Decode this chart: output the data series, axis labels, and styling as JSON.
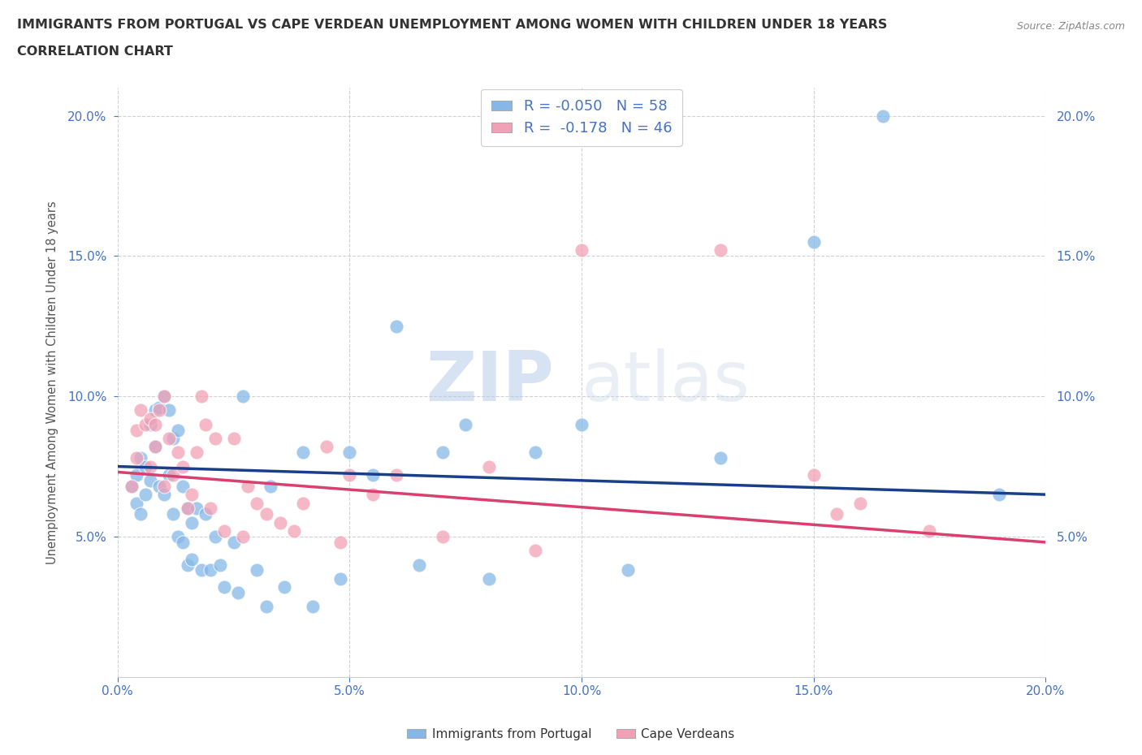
{
  "title_line1": "IMMIGRANTS FROM PORTUGAL VS CAPE VERDEAN UNEMPLOYMENT AMONG WOMEN WITH CHILDREN UNDER 18 YEARS",
  "title_line2": "CORRELATION CHART",
  "source_text": "Source: ZipAtlas.com",
  "ylabel": "Unemployment Among Women with Children Under 18 years",
  "xlim": [
    0.0,
    0.2
  ],
  "ylim": [
    0.0,
    0.21
  ],
  "xticks": [
    0.0,
    0.05,
    0.1,
    0.15,
    0.2
  ],
  "yticks": [
    0.05,
    0.1,
    0.15,
    0.2
  ],
  "watermark_zip": "ZIP",
  "watermark_atlas": "atlas",
  "blue_R": -0.05,
  "blue_N": 58,
  "pink_R": -0.178,
  "pink_N": 46,
  "blue_color": "#85B8E8",
  "pink_color": "#F2A0B5",
  "blue_line_color": "#1A3F8A",
  "pink_line_color": "#D94070",
  "legend_label_blue": "Immigrants from Portugal",
  "legend_label_pink": "Cape Verdeans",
  "blue_x": [
    0.003,
    0.004,
    0.004,
    0.005,
    0.005,
    0.006,
    0.006,
    0.007,
    0.007,
    0.008,
    0.008,
    0.009,
    0.009,
    0.01,
    0.01,
    0.011,
    0.011,
    0.012,
    0.012,
    0.013,
    0.013,
    0.014,
    0.014,
    0.015,
    0.015,
    0.016,
    0.016,
    0.017,
    0.018,
    0.019,
    0.02,
    0.021,
    0.022,
    0.023,
    0.025,
    0.026,
    0.027,
    0.03,
    0.032,
    0.033,
    0.036,
    0.04,
    0.042,
    0.048,
    0.05,
    0.055,
    0.06,
    0.065,
    0.07,
    0.075,
    0.08,
    0.09,
    0.1,
    0.11,
    0.13,
    0.15,
    0.165,
    0.19
  ],
  "blue_y": [
    0.068,
    0.072,
    0.062,
    0.078,
    0.058,
    0.075,
    0.065,
    0.09,
    0.07,
    0.095,
    0.082,
    0.096,
    0.068,
    0.1,
    0.065,
    0.095,
    0.072,
    0.085,
    0.058,
    0.088,
    0.05,
    0.068,
    0.048,
    0.06,
    0.04,
    0.055,
    0.042,
    0.06,
    0.038,
    0.058,
    0.038,
    0.05,
    0.04,
    0.032,
    0.048,
    0.03,
    0.1,
    0.038,
    0.025,
    0.068,
    0.032,
    0.08,
    0.025,
    0.035,
    0.08,
    0.072,
    0.125,
    0.04,
    0.08,
    0.09,
    0.035,
    0.08,
    0.09,
    0.038,
    0.078,
    0.155,
    0.2,
    0.065
  ],
  "pink_x": [
    0.003,
    0.004,
    0.004,
    0.005,
    0.006,
    0.007,
    0.007,
    0.008,
    0.008,
    0.009,
    0.01,
    0.01,
    0.011,
    0.012,
    0.013,
    0.014,
    0.015,
    0.016,
    0.017,
    0.018,
    0.019,
    0.02,
    0.021,
    0.023,
    0.025,
    0.027,
    0.028,
    0.03,
    0.032,
    0.035,
    0.038,
    0.04,
    0.045,
    0.048,
    0.05,
    0.055,
    0.06,
    0.07,
    0.08,
    0.09,
    0.1,
    0.13,
    0.15,
    0.155,
    0.16,
    0.175
  ],
  "pink_y": [
    0.068,
    0.088,
    0.078,
    0.095,
    0.09,
    0.092,
    0.075,
    0.09,
    0.082,
    0.095,
    0.1,
    0.068,
    0.085,
    0.072,
    0.08,
    0.075,
    0.06,
    0.065,
    0.08,
    0.1,
    0.09,
    0.06,
    0.085,
    0.052,
    0.085,
    0.05,
    0.068,
    0.062,
    0.058,
    0.055,
    0.052,
    0.062,
    0.082,
    0.048,
    0.072,
    0.065,
    0.072,
    0.05,
    0.075,
    0.045,
    0.152,
    0.152,
    0.072,
    0.058,
    0.062,
    0.052
  ],
  "blue_trend_x0": 0.0,
  "blue_trend_y0": 0.075,
  "blue_trend_x1": 0.2,
  "blue_trend_y1": 0.065,
  "pink_trend_x0": 0.0,
  "pink_trend_y0": 0.073,
  "pink_trend_x1": 0.2,
  "pink_trend_y1": 0.048
}
